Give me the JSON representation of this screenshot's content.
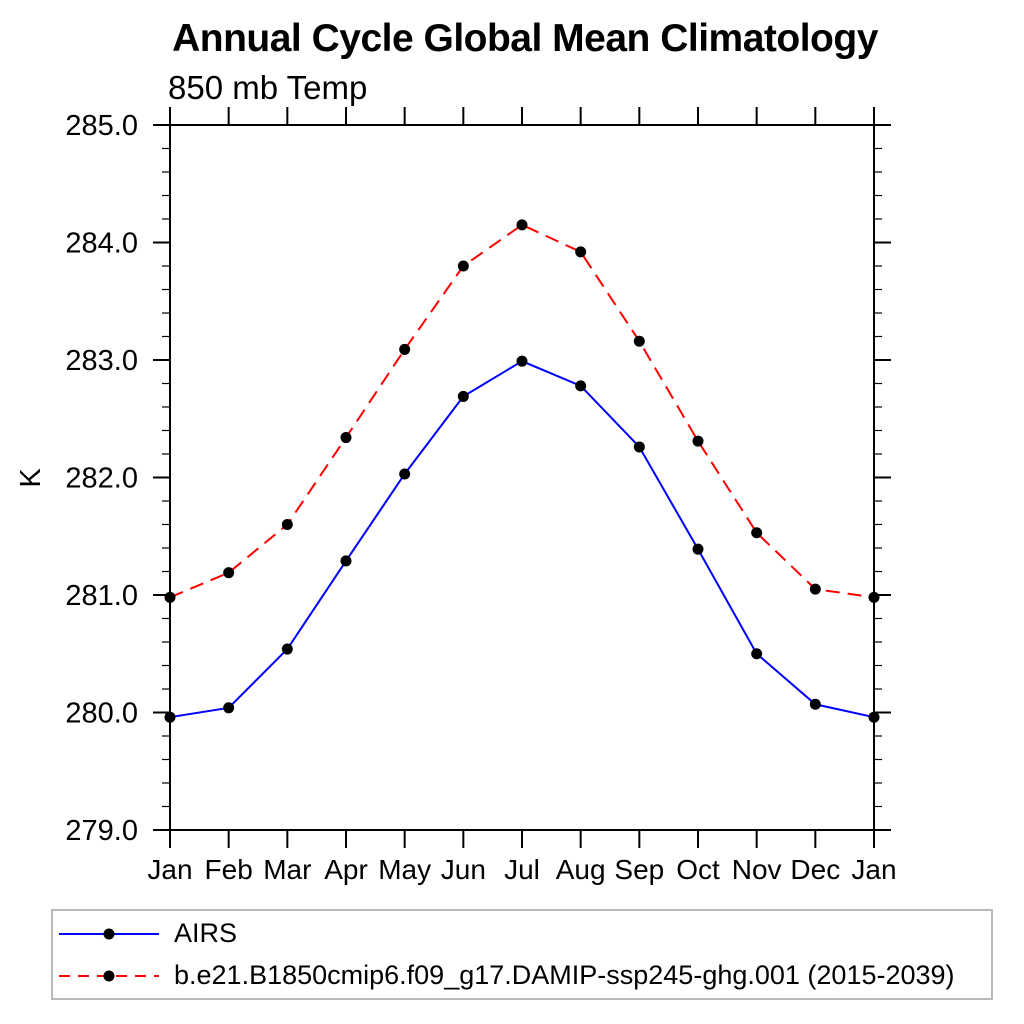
{
  "page": {
    "background": "#ffffff"
  },
  "chart_data": {
    "type": "line",
    "title": "Annual Cycle Global Mean Climatology",
    "subtitle": "850 mb Temp",
    "ylabel": "K",
    "xlabel": "",
    "x_tick_labels": [
      "Jan",
      "Feb",
      "Mar",
      "Apr",
      "May",
      "Jun",
      "Jul",
      "Aug",
      "Sep",
      "Oct",
      "Nov",
      "Dec",
      "Jan"
    ],
    "y_tick_labels": [
      "285.0",
      "284.0",
      "283.0",
      "282.0",
      "281.0",
      "280.0",
      "279.0"
    ],
    "ylim": [
      279.0,
      285.0
    ],
    "y_major_interval": 1.0,
    "y_minor_interval": 0.2,
    "grid": false,
    "frame": "boxed",
    "tick_direction": "out",
    "axis_color": "#000000",
    "legend_position": "bottom-left-box",
    "legend_border_color": "#b9b9b9",
    "series": [
      {
        "name": "AIRS",
        "line_color": "#0000ff",
        "line_style": "solid",
        "marker": "filled-circle",
        "marker_color": "#000000",
        "values": [
          279.96,
          280.04,
          280.54,
          281.29,
          282.03,
          282.69,
          282.99,
          282.78,
          282.26,
          281.39,
          280.5,
          280.07,
          279.96
        ]
      },
      {
        "name": "b.e21.B1850cmip6.f09_g17.DAMIP-ssp245-ghg.001 (2015-2039)",
        "line_color": "#ff0000",
        "line_style": "dashed",
        "marker": "filled-circle",
        "marker_color": "#000000",
        "values": [
          280.98,
          281.19,
          281.6,
          282.34,
          283.09,
          283.8,
          284.15,
          283.92,
          283.16,
          282.31,
          281.53,
          281.05,
          280.98
        ]
      }
    ]
  }
}
